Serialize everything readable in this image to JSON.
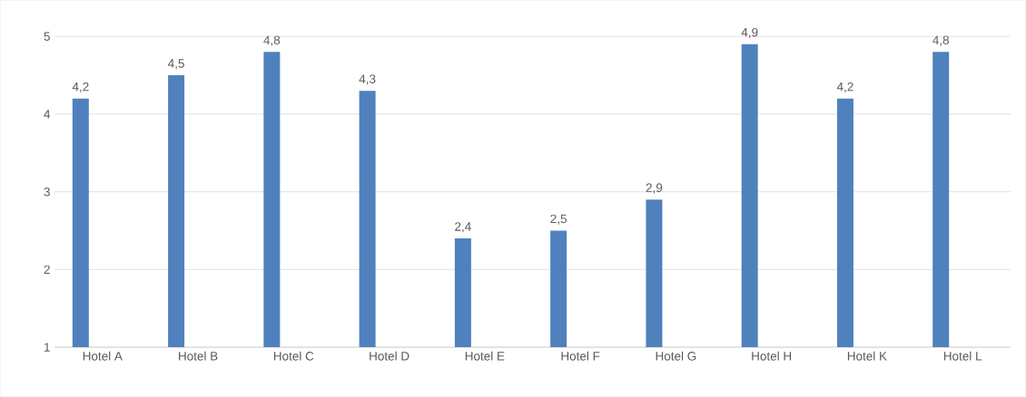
{
  "chart_data": {
    "type": "bar",
    "categories": [
      "Hotel A",
      "Hotel B",
      "Hotel C",
      "Hotel D",
      "Hotel E",
      "Hotel F",
      "Hotel G",
      "Hotel H",
      "Hotel K",
      "Hotel L"
    ],
    "values": [
      4.2,
      4.5,
      4.8,
      4.3,
      2.4,
      2.5,
      2.9,
      4.9,
      4.2,
      4.8
    ],
    "value_labels": [
      "4,2",
      "4,5",
      "4,8",
      "4,3",
      "2,4",
      "2,5",
      "2,9",
      "4,9",
      "4,2",
      "4,8"
    ],
    "color": "#4f81bd",
    "ylim": [
      1,
      5
    ],
    "yticks": [
      1,
      2,
      3,
      4,
      5
    ],
    "grid": "y"
  }
}
